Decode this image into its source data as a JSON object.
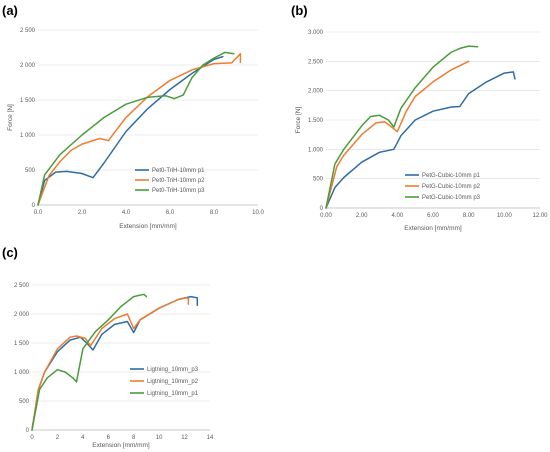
{
  "panels": {
    "a": {
      "letter": "(a)"
    },
    "b": {
      "letter": "(b)"
    },
    "c": {
      "letter": "(c)"
    }
  },
  "chart_data": [
    {
      "id": "a",
      "type": "line",
      "title": "",
      "xlabel": "Extension [mm/mm]",
      "ylabel": "Force [N]",
      "xlim": [
        0,
        10
      ],
      "ylim": [
        0,
        2500
      ],
      "xticks": [
        0,
        2,
        4,
        6,
        8,
        10
      ],
      "xtick_labels": [
        "0.0",
        "2.0",
        "4.0",
        "6.0",
        "8.0",
        "10.0"
      ],
      "yticks": [
        0,
        500,
        1000,
        1500,
        2000,
        2500
      ],
      "ytick_labels": [
        "0",
        "500",
        "1 000",
        "1 500",
        "2 000",
        "2 500"
      ],
      "grid": "horizontal",
      "legend": "right",
      "series": [
        {
          "name": "Pet0-TriH-10mm p1",
          "color": "#2e6da4",
          "x": [
            0,
            0.3,
            0.8,
            1.3,
            2.0,
            2.5,
            3.0,
            4.0,
            5.0,
            6.0,
            7.0,
            8.0,
            8.4
          ],
          "y": [
            0,
            350,
            470,
            480,
            450,
            390,
            600,
            1050,
            1380,
            1650,
            1880,
            2080,
            2120
          ]
        },
        {
          "name": "Pet0-TriH-10mm p2",
          "color": "#ed7d31",
          "x": [
            0,
            0.5,
            1.0,
            1.5,
            2.0,
            2.8,
            3.2,
            4.0,
            5.0,
            6.0,
            7.0,
            8.0,
            8.8,
            9.2,
            9.2
          ],
          "y": [
            0,
            420,
            620,
            780,
            870,
            950,
            920,
            1250,
            1550,
            1780,
            1930,
            2020,
            2030,
            2160,
            2040
          ]
        },
        {
          "name": "Pet0-TriH-10mm p3",
          "color": "#4a9c3d",
          "x": [
            0,
            0.3,
            1.0,
            2.0,
            3.0,
            4.0,
            5.0,
            5.8,
            6.2,
            6.6,
            7.0,
            7.5,
            8.0,
            8.5,
            8.9
          ],
          "y": [
            0,
            430,
            720,
            1000,
            1250,
            1440,
            1540,
            1560,
            1520,
            1570,
            1820,
            2000,
            2100,
            2180,
            2160
          ]
        }
      ]
    },
    {
      "id": "b",
      "type": "line",
      "title": "",
      "xlabel": "Extension [mm/mm]",
      "ylabel": "Force [N]",
      "xlim": [
        0,
        12
      ],
      "ylim": [
        0,
        3000
      ],
      "xticks": [
        0,
        2,
        4,
        6,
        8,
        10,
        12
      ],
      "xtick_labels": [
        "0.00",
        "2.00",
        "4.00",
        "6.00",
        "8.00",
        "10.00",
        "12.00"
      ],
      "yticks": [
        0,
        500,
        1000,
        1500,
        2000,
        2500,
        3000
      ],
      "ytick_labels": [
        "0",
        "500",
        "1.000",
        "1.500",
        "2.000",
        "2.500",
        "3.000"
      ],
      "grid": "horizontal",
      "legend": "right",
      "series": [
        {
          "name": "PetG-Cubic-10mm p1",
          "color": "#2e6da4",
          "x": [
            0,
            0.5,
            1.0,
            2.0,
            3.0,
            3.8,
            4.2,
            5.0,
            6.0,
            7.0,
            7.5,
            8.0,
            9.0,
            10.0,
            10.5,
            10.6
          ],
          "y": [
            0,
            350,
            520,
            780,
            950,
            1000,
            1230,
            1500,
            1650,
            1720,
            1730,
            1950,
            2150,
            2300,
            2320,
            2200
          ]
        },
        {
          "name": "PetG-Cubic-10mm p2",
          "color": "#ed7d31",
          "x": [
            0,
            0.6,
            1.0,
            2.0,
            2.8,
            3.3,
            3.6,
            4.0,
            4.5,
            5.0,
            6.0,
            7.0,
            8.0
          ],
          "y": [
            0,
            700,
            900,
            1250,
            1450,
            1470,
            1400,
            1300,
            1650,
            1900,
            2150,
            2350,
            2500
          ]
        },
        {
          "name": "PetG-Cubic-10mm p3",
          "color": "#4a9c3d",
          "x": [
            0,
            0.5,
            1.0,
            2.0,
            2.5,
            3.0,
            3.5,
            3.8,
            4.2,
            5.0,
            6.0,
            7.0,
            7.5,
            8.0,
            8.5
          ],
          "y": [
            0,
            750,
            1000,
            1400,
            1560,
            1580,
            1500,
            1380,
            1700,
            2050,
            2400,
            2650,
            2720,
            2760,
            2750
          ]
        }
      ]
    },
    {
      "id": "c",
      "type": "line",
      "title": "",
      "xlabel": "Extension [mm/mm]",
      "ylabel": "",
      "xlim": [
        0,
        14
      ],
      "ylim": [
        0,
        2500
      ],
      "xticks": [
        0,
        2,
        4,
        6,
        8,
        10,
        12,
        14
      ],
      "xtick_labels": [
        "0",
        "2",
        "4",
        "6",
        "8",
        "10",
        "12",
        "14"
      ],
      "yticks": [
        0,
        500,
        1000,
        1500,
        2000,
        2500
      ],
      "ytick_labels": [
        "0",
        "500",
        "1 000",
        "1 500",
        "2 000",
        "2 500"
      ],
      "grid": "horizontal",
      "legend": "bottom-right",
      "series": [
        {
          "name": "Ligtning_10mm_p3",
          "color": "#2e6da4",
          "x": [
            0,
            0.5,
            1.0,
            2.0,
            3.0,
            3.8,
            4.3,
            4.8,
            5.5,
            6.5,
            7.5,
            8.0,
            8.5,
            10.0,
            11.5,
            12.5,
            13.0,
            13.0
          ],
          "y": [
            0,
            700,
            1000,
            1350,
            1550,
            1600,
            1500,
            1380,
            1650,
            1820,
            1870,
            1680,
            1900,
            2100,
            2250,
            2300,
            2280,
            2150
          ]
        },
        {
          "name": "Ligtning_10mm_p2",
          "color": "#ed7d31",
          "x": [
            0,
            0.5,
            1.0,
            2.0,
            3.0,
            3.5,
            4.2,
            4.6,
            5.5,
            6.5,
            7.5,
            8.0,
            8.5,
            10.0,
            11.5,
            12.0,
            12.3,
            12.3
          ],
          "y": [
            0,
            700,
            1000,
            1400,
            1600,
            1620,
            1580,
            1450,
            1750,
            1920,
            2000,
            1750,
            1900,
            2100,
            2250,
            2280,
            2270,
            2170
          ]
        },
        {
          "name": "Ligtning_10mm_p1",
          "color": "#4a9c3d",
          "x": [
            0,
            0.6,
            1.2,
            2.0,
            2.6,
            3.2,
            3.5,
            4.0,
            4.5,
            5.0,
            6.0,
            7.0,
            8.0,
            8.8,
            9.0
          ],
          "y": [
            0,
            700,
            900,
            1040,
            1000,
            900,
            830,
            1400,
            1550,
            1700,
            1900,
            2130,
            2300,
            2340,
            2300
          ]
        }
      ]
    }
  ]
}
